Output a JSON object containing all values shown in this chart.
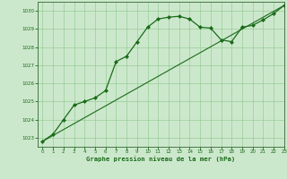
{
  "title": "Graphe pression niveau de la mer (hPa)",
  "line1": {
    "x": [
      0,
      1,
      2,
      3,
      4,
      5,
      6,
      7,
      8,
      9,
      10,
      11,
      12,
      13,
      14,
      15,
      16,
      17,
      18,
      19,
      20,
      21,
      22,
      23
    ],
    "y": [
      1022.8,
      1023.2,
      1024.0,
      1024.8,
      1025.0,
      1025.2,
      1025.6,
      1027.2,
      1027.5,
      1028.3,
      1029.1,
      1029.55,
      1029.65,
      1029.7,
      1029.55,
      1029.1,
      1029.05,
      1028.4,
      1028.3,
      1029.1,
      1029.2,
      1029.5,
      1029.85,
      1030.3
    ],
    "color": "#1a6b1a",
    "linewidth": 0.9,
    "marker": "D",
    "markersize": 2.0
  },
  "line2": {
    "x": [
      0,
      23
    ],
    "y": [
      1022.8,
      1030.3
    ],
    "color": "#1a6b1a",
    "linewidth": 0.8
  },
  "xlim": [
    -0.5,
    23
  ],
  "ylim": [
    1022.5,
    1030.5
  ],
  "yticks": [
    1023,
    1024,
    1025,
    1026,
    1027,
    1028,
    1029,
    1030
  ],
  "xticks": [
    0,
    1,
    2,
    3,
    4,
    5,
    6,
    7,
    8,
    9,
    10,
    11,
    12,
    13,
    14,
    15,
    16,
    17,
    18,
    19,
    20,
    21,
    22,
    23
  ],
  "background_color": "#cce8cc",
  "grid_color": "#99cc99",
  "line_color": "#1a6b1a",
  "label_color": "#1a6b1a",
  "axis_color": "#336633"
}
